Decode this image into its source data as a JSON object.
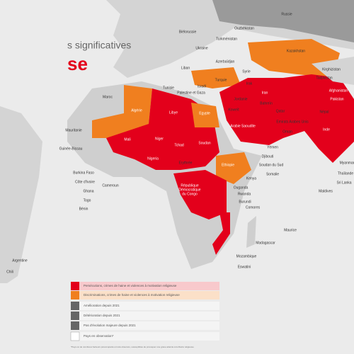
{
  "title": {
    "line1": "s significatives",
    "line2": "se"
  },
  "labels": [
    "Russie",
    "Biélorussie",
    "Turkménistan",
    "Ukraine",
    "Ouzbékistan",
    "Kazakhstan",
    "Kirghizistan",
    "Azerbaïdjan",
    "Liban",
    "Turquie",
    "Israël",
    "Tunisie",
    "Palestine et Gaza",
    "Syrie",
    "Irak",
    "Iran",
    "Tadjikistan",
    "Afghanistan",
    "Pakistan",
    "Maroc",
    "Algérie",
    "Libye",
    "Egypte",
    "Jordanie",
    "Koweït",
    "Bahreïn",
    "Qatar",
    "Népal",
    "Inde",
    "Arabie Saoudite",
    "Emirats Arabes Unis",
    "Oman",
    "Mauritanie",
    "Mali",
    "Niger",
    "Tchad",
    "Soudan",
    "Guinée-Bissau",
    "Burkina Faso",
    "Côte d'Ivoire",
    "Ghana",
    "Togo",
    "Bénin",
    "Nigeria",
    "Cameroun",
    "Erythrée",
    "Yémen",
    "Djibouti",
    "Soudan du Sud",
    "Ethiopie",
    "Somalie",
    "Kenya",
    "Ouganda",
    "Rwanda",
    "Burundi",
    [
      "République",
      "Démocratique",
      "du Congo"
    ],
    "Comores",
    "Maurice",
    "Madagascar",
    "Mozambique",
    "Eswatini",
    "Myanmar",
    "Thaïlande",
    "Sri Lanka",
    "Maldives",
    "Argentine",
    "Chili"
  ],
  "legend": {
    "items": [
      "Persécutions, crimes de haine et violences à motivation religieuse",
      "Discriminations, crimes de haine et violences à motivation religieuse",
      "Amélioration depuis 2021",
      "Détérioration depuis 2021",
      "Pas d'évolution majeure depuis 2021",
      "Pays en observation*"
    ],
    "footnote": "*Pays où de nombreux facteurs préoccupants ont été observés, susceptibles de provoquer une grave atteinte à la liberté religieuse."
  }
}
